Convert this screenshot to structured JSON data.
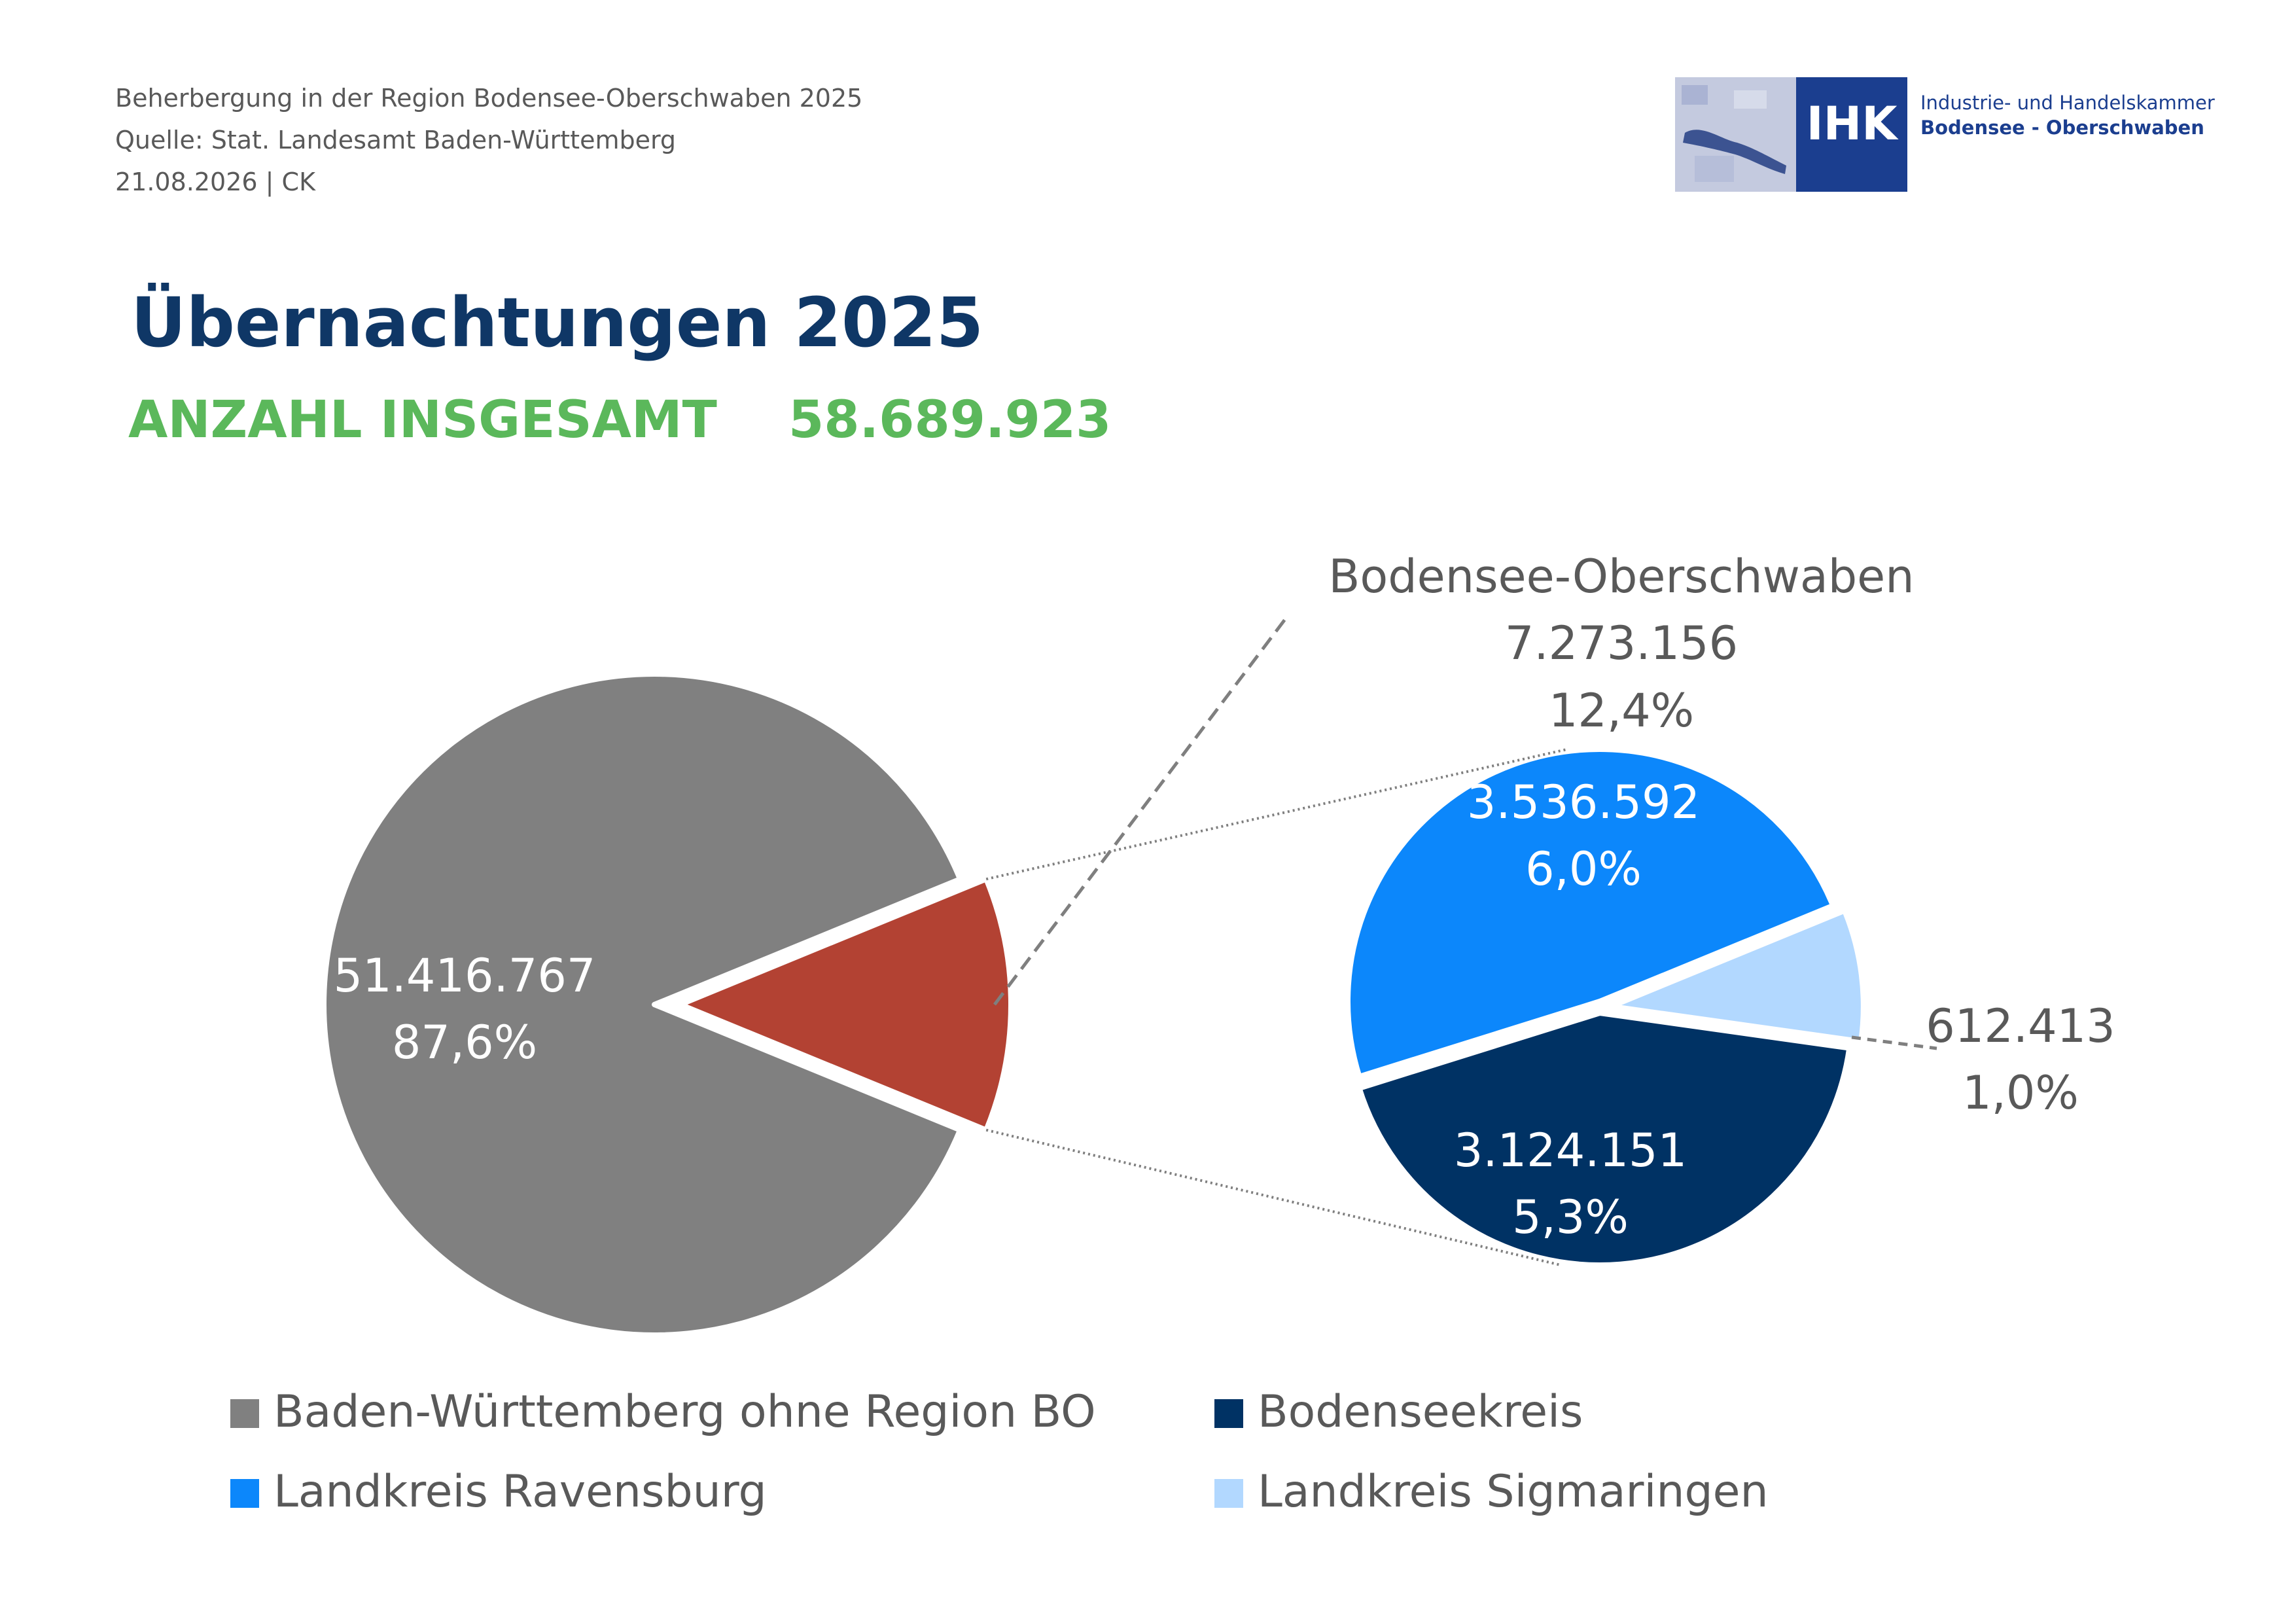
{
  "header": {
    "line1": "Beherbergung in der Region Bodensee-Oberschwaben 2025",
    "line2": "Quelle: Stat. Landesamt Baden-Württemberg",
    "line3": "21.08.2026 | CK"
  },
  "logo": {
    "abbr": "IHK",
    "line1": "Industrie- und Handelskammer",
    "line2": "Bodensee - Oberschwaben",
    "color": "#1b3e8f"
  },
  "title": "Übernachtungen 2025",
  "total": {
    "label": "ANZAHL INSGESAMT",
    "value": "58.689.923"
  },
  "chart_data": {
    "type": "pie",
    "title": "Übernachtungen 2025",
    "total": 58689923,
    "main_pie": [
      {
        "name": "Baden-Württemberg ohne Region BO",
        "value": 51416767,
        "value_label": "51.416.767",
        "percent_label": "87,6%",
        "color": "#808080"
      },
      {
        "name": "Bodensee-Oberschwaben",
        "value": 7273156,
        "value_label": "7.273.156",
        "percent_label": "12,4%",
        "color": "#b34233"
      }
    ],
    "sub_pie_title": "Bodensee-Oberschwaben",
    "sub_pie": [
      {
        "name": "Landkreis Ravensburg",
        "value": 3536592,
        "value_label": "3.536.592",
        "percent_label": "6,0%",
        "color": "#0c87fb"
      },
      {
        "name": "Landkreis Sigmaringen",
        "value": 612413,
        "value_label": "612.413",
        "percent_label": "1,0%",
        "color": "#b2d8ff"
      },
      {
        "name": "Bodenseekreis",
        "value": 3124151,
        "value_label": "3.124.151",
        "percent_label": "5,3%",
        "color": "#003264"
      }
    ],
    "legend": [
      {
        "label": "Baden-Württemberg ohne Region BO",
        "color": "#808080"
      },
      {
        "label": "Bodenseekreis",
        "color": "#003264"
      },
      {
        "label": "Landkreis Ravensburg",
        "color": "#0c87fb"
      },
      {
        "label": "Landkreis Sigmaringen",
        "color": "#b2d8ff"
      }
    ]
  }
}
